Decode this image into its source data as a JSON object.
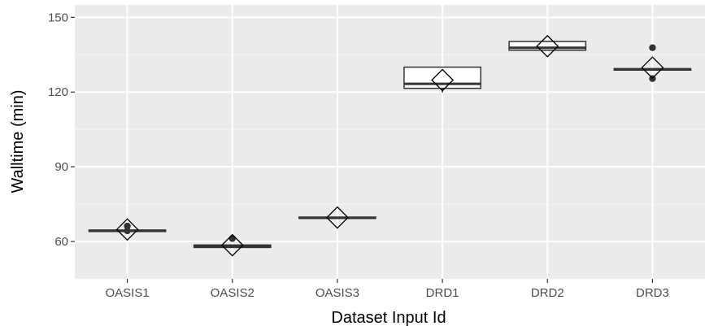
{
  "chart_data": {
    "type": "boxplot",
    "xlabel": "Dataset Input Id",
    "ylabel": "Walltime (min)",
    "categories": [
      "OASIS1",
      "OASIS2",
      "OASIS3",
      "DRD1",
      "DRD2",
      "DRD3"
    ],
    "ylim": [
      45,
      155
    ],
    "yticks": [
      60,
      90,
      120,
      150
    ],
    "grid": true,
    "boxes": [
      {
        "category": "OASIS1",
        "q1": 64.0,
        "median": 64.3,
        "q3": 64.6,
        "whisker_low": 64.0,
        "whisker_high": 64.6,
        "mean": 64.8,
        "points": [
          66.2,
          64.3
        ]
      },
      {
        "category": "OASIS2",
        "q1": 57.6,
        "median": 58.0,
        "q3": 58.6,
        "whisker_low": 57.6,
        "whisker_high": 58.6,
        "mean": 58.5,
        "points": [
          61.2
        ]
      },
      {
        "category": "OASIS3",
        "q1": 69.3,
        "median": 69.5,
        "q3": 69.8,
        "whisker_low": 69.3,
        "whisker_high": 69.8,
        "mean": 69.6,
        "points": []
      },
      {
        "category": "DRD1",
        "q1": 121.5,
        "median": 123.3,
        "q3": 130.0,
        "whisker_low": 119.8,
        "whisker_high": 130.0,
        "mean": 124.8,
        "points": []
      },
      {
        "category": "DRD2",
        "q1": 136.8,
        "median": 137.8,
        "q3": 140.3,
        "whisker_low": 136.8,
        "whisker_high": 140.3,
        "mean": 138.4,
        "points": []
      },
      {
        "category": "DRD3",
        "q1": 128.8,
        "median": 129.1,
        "q3": 129.4,
        "whisker_low": 128.8,
        "whisker_high": 129.4,
        "mean": 129.8,
        "points": [
          137.8,
          125.4
        ]
      }
    ],
    "colors": {
      "panel": "#ebebeb",
      "grid_major": "#ffffff",
      "grid_minor": "#f5f5f5",
      "box_fill": "#ffffff",
      "box_line": "#333333",
      "point": "#333333",
      "mean_marker": "#000000"
    }
  }
}
